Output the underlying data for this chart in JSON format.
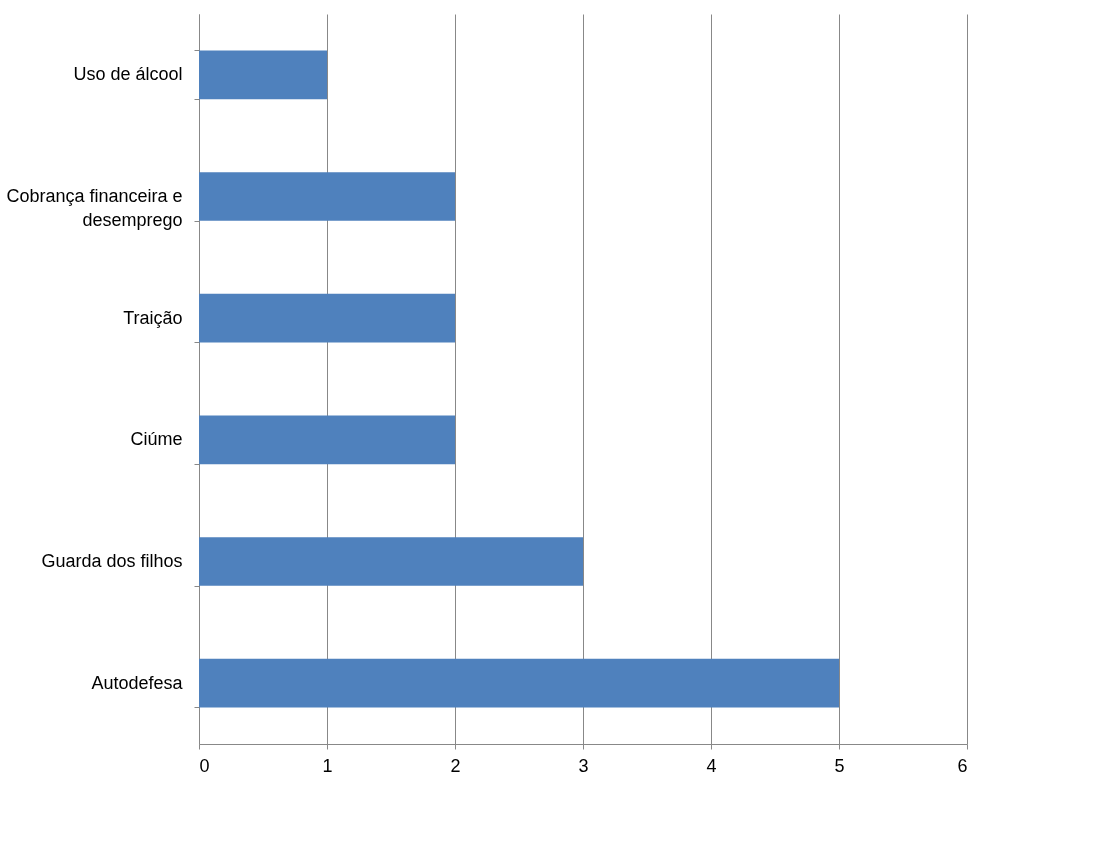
{
  "chart_data": {
    "type": "bar",
    "orientation": "horizontal",
    "categories": [
      "Uso de álcool",
      "Cobrança financeira e desemprego",
      "Traição",
      "Ciúme",
      "Guarda dos filhos",
      "Autodefesa"
    ],
    "values": [
      1,
      2,
      2,
      2,
      3,
      5
    ],
    "color": "#4f81bd",
    "xlim": [
      0,
      6
    ],
    "xticks": [
      0,
      1,
      2,
      3,
      4,
      5,
      6
    ],
    "grid": "x"
  }
}
